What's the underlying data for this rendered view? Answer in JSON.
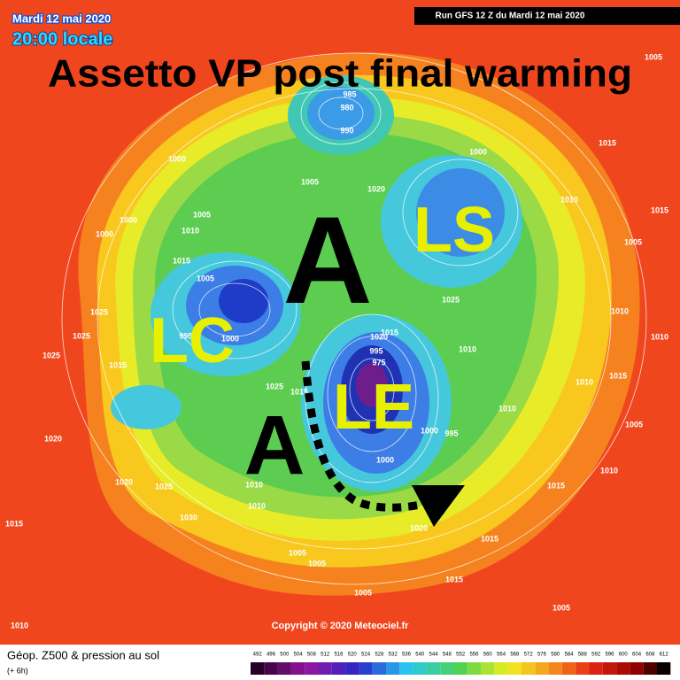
{
  "header": {
    "date": "Mardi 12 mai 2020",
    "time": "20:00 locale",
    "run": "Run GFS 12 Z du Mardi 12 mai 2020"
  },
  "title": "Assetto VP post final warming",
  "annotations": [
    "A",
    "A",
    "LS",
    "LC",
    "LE"
  ],
  "map": {
    "pressure_labels": [
      "1005",
      "985",
      "980",
      "990",
      "1000",
      "1005",
      "1020",
      "1000",
      "1015",
      "1010",
      "1000",
      "1005",
      "1010",
      "1000",
      "1015",
      "1005",
      "1025",
      "1025",
      "995",
      "1000",
      "1025",
      "1015",
      "1025",
      "1015",
      "1020",
      "1015",
      "995",
      "975",
      "1025",
      "1010",
      "1010",
      "1000",
      "995",
      "1000",
      "1020",
      "1020",
      "1025",
      "1030",
      "1010",
      "1010",
      "1015",
      "1005",
      "1005",
      "1020",
      "1015",
      "1015",
      "1005",
      "1005",
      "1010",
      "1015",
      "1010",
      "1005",
      "1010",
      "1010",
      "1015",
      "1010",
      "1015",
      "1005"
    ],
    "copyright": "Copyright © 2020 Meteociel.fr"
  },
  "legend": {
    "title": "Géop. Z500 & pression au sol",
    "step": "(+ 6h)",
    "scale": [
      492,
      496,
      500,
      504,
      508,
      512,
      516,
      520,
      524,
      528,
      532,
      536,
      540,
      544,
      548,
      552,
      556,
      560,
      564,
      568,
      572,
      576,
      580,
      584,
      588,
      592,
      596,
      600,
      604,
      608,
      612
    ]
  }
}
